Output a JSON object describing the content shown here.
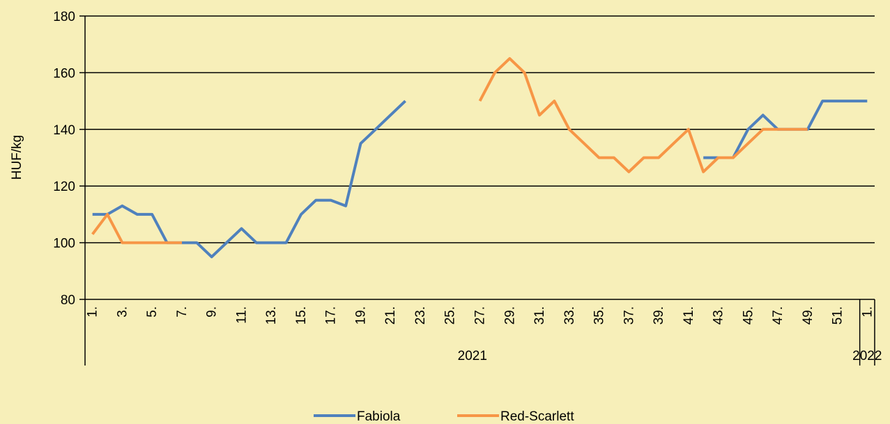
{
  "chart_data": {
    "type": "line",
    "y_label": "HUF/kg",
    "categories": [
      "1.",
      null,
      "3.",
      null,
      "5.",
      null,
      "7.",
      null,
      "9.",
      null,
      "11.",
      null,
      "13.",
      null,
      "15.",
      null,
      "17.",
      null,
      "19.",
      null,
      "21.",
      null,
      "23.",
      null,
      "25.",
      null,
      "27.",
      null,
      "29.",
      null,
      "31.",
      null,
      "33.",
      null,
      "35.",
      null,
      "37.",
      null,
      "39.",
      null,
      "41.",
      null,
      "43.",
      null,
      "45.",
      null,
      "47.",
      null,
      "49.",
      null,
      "51.",
      null,
      "1."
    ],
    "x_groups": [
      {
        "name": "2021",
        "count": 52
      },
      {
        "name": "2022",
        "count": 1
      }
    ],
    "series": [
      {
        "name": "Fabiola",
        "color": "#4f81bd",
        "values": [
          110,
          110,
          113,
          110,
          110,
          100,
          100,
          100,
          95,
          100,
          105,
          100,
          100,
          100,
          110,
          115,
          115,
          113,
          135,
          140,
          145,
          150,
          null,
          null,
          null,
          null,
          null,
          null,
          null,
          null,
          null,
          null,
          null,
          null,
          null,
          null,
          null,
          null,
          null,
          null,
          null,
          130,
          130,
          130,
          140,
          145,
          140,
          140,
          140,
          150,
          150,
          150,
          150
        ]
      },
      {
        "name": "Red-Scarlett",
        "color": "#f79646",
        "values": [
          103,
          110,
          100,
          100,
          100,
          100,
          100,
          null,
          null,
          null,
          null,
          null,
          null,
          null,
          null,
          null,
          null,
          null,
          null,
          null,
          null,
          null,
          null,
          null,
          null,
          null,
          150,
          160,
          165,
          160,
          145,
          150,
          140,
          135,
          130,
          130,
          125,
          130,
          130,
          135,
          140,
          125,
          130,
          130,
          135,
          140,
          140,
          140,
          140,
          null,
          null,
          null,
          null
        ]
      }
    ],
    "ylim": [
      80,
      180
    ],
    "yticks": [
      80,
      100,
      120,
      140,
      160,
      180
    ],
    "grid": true,
    "legend": "bottom"
  }
}
